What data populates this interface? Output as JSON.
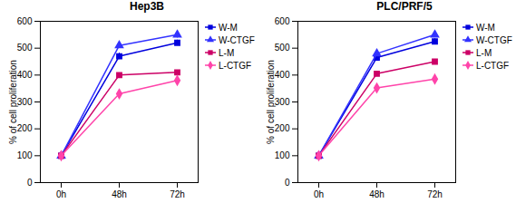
{
  "chart_data": [
    {
      "type": "line",
      "title": "Hep3B",
      "categories": [
        "0h",
        "48h",
        "72h"
      ],
      "ylabel": "% of cell proliferation",
      "ylim": [
        0,
        600
      ],
      "yticks": [
        0,
        100,
        200,
        300,
        400,
        500,
        600
      ],
      "grid": false,
      "legend": "upper right",
      "series": [
        {
          "name": "W-M",
          "color": "#0000dd",
          "marker": "square",
          "values": [
            100,
            470,
            520
          ],
          "errors": [
            0,
            12,
            10
          ]
        },
        {
          "name": "W-CTGF",
          "color": "#3333ff",
          "marker": "triangle",
          "values": [
            100,
            510,
            550
          ],
          "errors": [
            0,
            10,
            12
          ]
        },
        {
          "name": "L-M",
          "color": "#cc0066",
          "marker": "square",
          "values": [
            100,
            400,
            410
          ],
          "errors": [
            0,
            8,
            8
          ]
        },
        {
          "name": "L-CTGF",
          "color": "#ff44aa",
          "marker": "diamond",
          "values": [
            100,
            330,
            380
          ],
          "errors": [
            0,
            8,
            8
          ]
        }
      ]
    },
    {
      "type": "line",
      "title": "PLC/PRF/5",
      "categories": [
        "0h",
        "48h",
        "72h"
      ],
      "ylabel": "% of cell proliferation",
      "ylim": [
        0,
        600
      ],
      "yticks": [
        0,
        100,
        200,
        300,
        400,
        500,
        600
      ],
      "grid": false,
      "legend": "upper right",
      "series": [
        {
          "name": "W-M",
          "color": "#0000dd",
          "marker": "square",
          "values": [
            100,
            465,
            525
          ],
          "errors": [
            0,
            10,
            10
          ]
        },
        {
          "name": "W-CTGF",
          "color": "#3333ff",
          "marker": "triangle",
          "values": [
            100,
            480,
            550
          ],
          "errors": [
            0,
            10,
            10
          ]
        },
        {
          "name": "L-M",
          "color": "#cc0066",
          "marker": "square",
          "values": [
            100,
            405,
            450
          ],
          "errors": [
            0,
            8,
            8
          ]
        },
        {
          "name": "L-CTGF",
          "color": "#ff44aa",
          "marker": "diamond",
          "values": [
            100,
            352,
            385
          ],
          "errors": [
            0,
            8,
            8
          ]
        }
      ]
    }
  ]
}
